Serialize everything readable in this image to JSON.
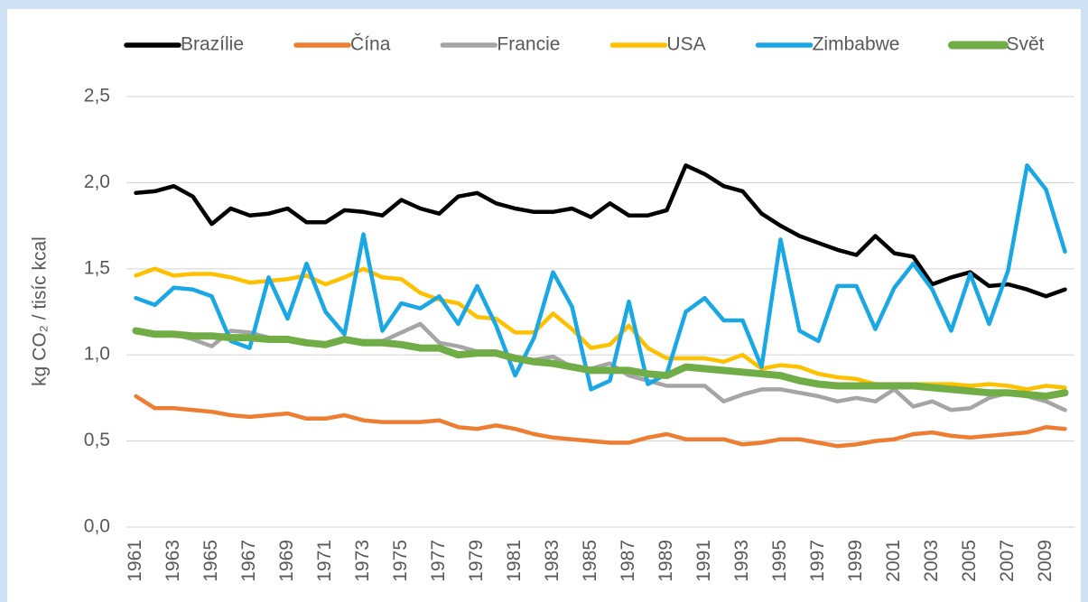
{
  "chart_data": {
    "type": "line",
    "ylabel": "kg CO₂ / tisíc kcal",
    "categories": [
      "1961",
      null,
      "1963",
      null,
      "1965",
      null,
      "1967",
      null,
      "1969",
      null,
      "1971",
      null,
      "1973",
      null,
      "1975",
      null,
      "1977",
      null,
      "1979",
      null,
      "1981",
      null,
      "1983",
      null,
      "1985",
      null,
      "1987",
      null,
      "1989",
      null,
      "1991",
      null,
      "1993",
      null,
      "1995",
      null,
      "1997",
      null,
      "1999",
      null,
      "2001",
      null,
      "2003",
      null,
      "2005",
      null,
      "2007",
      null,
      "2009",
      null
    ],
    "ylim": [
      0,
      2.5
    ],
    "yticks": [
      {
        "value": 0,
        "label": "0,0"
      },
      {
        "value": 0.5,
        "label": "0,5"
      },
      {
        "value": 1,
        "label": "1,0"
      },
      {
        "value": 1.5,
        "label": "1,5"
      },
      {
        "value": 2,
        "label": "2,0"
      },
      {
        "value": 2.5,
        "label": "2,5"
      }
    ],
    "grid": true,
    "legend": "top",
    "series": [
      {
        "name": "Brazílie",
        "color": "#000000",
        "line_width": 4.5,
        "values": [
          1.94,
          1.95,
          1.98,
          1.92,
          1.76,
          1.85,
          1.81,
          1.82,
          1.85,
          1.77,
          1.77,
          1.84,
          1.83,
          1.81,
          1.9,
          1.85,
          1.82,
          1.92,
          1.94,
          1.88,
          1.85,
          1.83,
          1.83,
          1.85,
          1.8,
          1.88,
          1.81,
          1.81,
          1.84,
          2.1,
          2.05,
          1.98,
          1.95,
          1.82,
          1.75,
          1.69,
          1.65,
          1.61,
          1.58,
          1.69,
          1.59,
          1.57,
          1.41,
          1.45,
          1.48,
          1.4,
          1.41,
          1.38,
          1.34,
          1.38
        ]
      },
      {
        "name": "Čína",
        "color": "#ed7d31",
        "line_width": 4.5,
        "values": [
          0.76,
          0.69,
          0.69,
          0.68,
          0.67,
          0.65,
          0.64,
          0.65,
          0.66,
          0.63,
          0.63,
          0.65,
          0.62,
          0.61,
          0.61,
          0.61,
          0.62,
          0.58,
          0.57,
          0.59,
          0.57,
          0.54,
          0.52,
          0.51,
          0.5,
          0.49,
          0.49,
          0.52,
          0.54,
          0.51,
          0.51,
          0.51,
          0.48,
          0.49,
          0.51,
          0.51,
          0.49,
          0.47,
          0.48,
          0.5,
          0.51,
          0.54,
          0.55,
          0.53,
          0.52,
          0.53,
          0.54,
          0.55,
          0.58,
          0.57
        ]
      },
      {
        "name": "Francie",
        "color": "#a5a5a5",
        "line_width": 4.5,
        "values": [
          1.14,
          1.12,
          1.12,
          1.09,
          1.05,
          1.14,
          1.13,
          1.1,
          1.1,
          1.07,
          1.05,
          1.09,
          1.08,
          1.08,
          1.13,
          1.18,
          1.07,
          1.05,
          1.02,
          1.02,
          0.99,
          0.97,
          0.99,
          0.93,
          0.92,
          0.95,
          0.88,
          0.85,
          0.82,
          0.82,
          0.82,
          0.73,
          0.77,
          0.8,
          0.8,
          0.78,
          0.76,
          0.73,
          0.75,
          0.73,
          0.8,
          0.7,
          0.73,
          0.68,
          0.69,
          0.75,
          0.78,
          0.76,
          0.73,
          0.68
        ]
      },
      {
        "name": "USA",
        "color": "#ffc000",
        "line_width": 4.5,
        "values": [
          1.46,
          1.5,
          1.46,
          1.47,
          1.47,
          1.45,
          1.42,
          1.43,
          1.44,
          1.46,
          1.41,
          1.45,
          1.5,
          1.45,
          1.44,
          1.36,
          1.32,
          1.3,
          1.22,
          1.21,
          1.13,
          1.13,
          1.24,
          1.15,
          1.04,
          1.06,
          1.17,
          1.04,
          0.98,
          0.98,
          0.98,
          0.96,
          1.0,
          0.92,
          0.94,
          0.93,
          0.89,
          0.87,
          0.86,
          0.83,
          0.83,
          0.83,
          0.83,
          0.83,
          0.82,
          0.83,
          0.82,
          0.8,
          0.82,
          0.81
        ]
      },
      {
        "name": "Zimbabwe",
        "color": "#1aa7e6",
        "line_width": 4.5,
        "values": [
          1.33,
          1.29,
          1.39,
          1.38,
          1.34,
          1.08,
          1.04,
          1.45,
          1.21,
          1.53,
          1.25,
          1.12,
          1.7,
          1.14,
          1.3,
          1.27,
          1.34,
          1.18,
          1.4,
          1.17,
          0.88,
          1.1,
          1.48,
          1.28,
          0.8,
          0.85,
          1.31,
          0.83,
          0.89,
          1.25,
          1.33,
          1.2,
          1.2,
          0.93,
          1.67,
          1.14,
          1.08,
          1.4,
          1.4,
          1.15,
          1.39,
          1.53,
          1.38,
          1.14,
          1.47,
          1.18,
          1.49,
          2.1,
          1.96,
          1.6
        ]
      },
      {
        "name": "Svět",
        "color": "#70ad47",
        "line_width": 8,
        "values": [
          1.14,
          1.12,
          1.12,
          1.11,
          1.11,
          1.1,
          1.1,
          1.09,
          1.09,
          1.07,
          1.06,
          1.09,
          1.07,
          1.07,
          1.06,
          1.04,
          1.04,
          1.0,
          1.01,
          1.01,
          0.98,
          0.96,
          0.95,
          0.93,
          0.91,
          0.91,
          0.91,
          0.89,
          0.88,
          0.93,
          0.92,
          0.91,
          0.9,
          0.89,
          0.88,
          0.85,
          0.83,
          0.82,
          0.82,
          0.82,
          0.82,
          0.82,
          0.81,
          0.8,
          0.79,
          0.78,
          0.78,
          0.77,
          0.76,
          0.78
        ]
      }
    ]
  }
}
